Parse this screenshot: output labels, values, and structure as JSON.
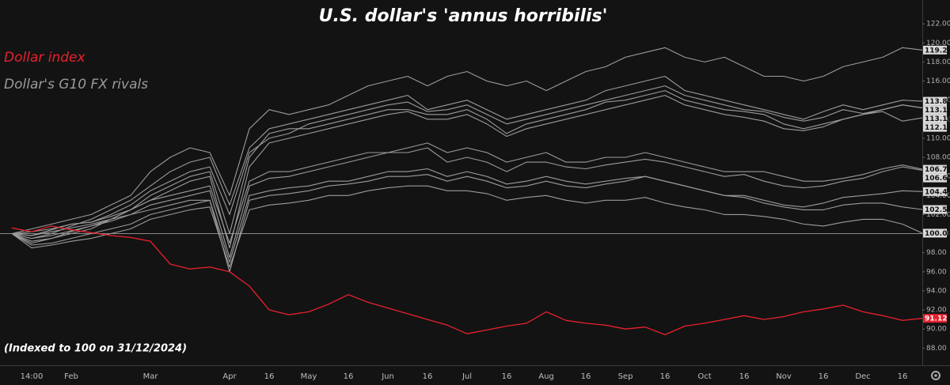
{
  "chart_data": {
    "type": "line",
    "title": "U.S. dollar's 'annus horribilis'",
    "annotation": "(Indexed to 100 on 31/12/2024)",
    "categories": [
      null,
      "14:00",
      null,
      "Feb",
      null,
      null,
      null,
      "Mar",
      null,
      null,
      null,
      "Apr",
      null,
      "16",
      null,
      "May",
      null,
      "16",
      null,
      "Jun",
      null,
      "16",
      null,
      "Jul",
      null,
      "16",
      null,
      "Aug",
      null,
      "16",
      null,
      "Sep",
      null,
      "16",
      null,
      "Oct",
      null,
      "16",
      null,
      "Nov",
      null,
      "16",
      null,
      "Dec",
      null,
      "16",
      null
    ],
    "ylim": [
      86.2,
      124.5
    ],
    "yticks": [
      {
        "value": 88,
        "label": "88.00"
      },
      {
        "value": 90,
        "label": "90.00"
      },
      {
        "value": 92,
        "label": "92.00"
      },
      {
        "value": 94,
        "label": "94.00"
      },
      {
        "value": 96,
        "label": "96.00"
      },
      {
        "value": 98,
        "label": "98.00"
      },
      {
        "value": 100,
        "label": "100.00"
      },
      {
        "value": 102,
        "label": "102.00"
      },
      {
        "value": 104,
        "label": "104.00"
      },
      {
        "value": 106,
        "label": "106.00"
      },
      {
        "value": 108,
        "label": "108.00"
      },
      {
        "value": 110,
        "label": "110.00"
      },
      {
        "value": 112,
        "label": "112.00"
      },
      {
        "value": 114,
        "label": "114.00"
      },
      {
        "value": 116,
        "label": "116.00"
      },
      {
        "value": 118,
        "label": "118.00"
      },
      {
        "value": 120,
        "label": "120.00"
      },
      {
        "value": 122,
        "label": "122.00"
      }
    ],
    "reference_line": 100,
    "grid": false,
    "series": [
      {
        "name": "Dollar index",
        "color": "#e8212e",
        "values": [
          100.6,
          100.2,
          100.8,
          100.4,
          100.1,
          99.8,
          99.6,
          99.2,
          96.8,
          96.3,
          96.5,
          96.0,
          94.5,
          92.0,
          91.5,
          91.8,
          92.6,
          93.6,
          92.8,
          92.2,
          91.6,
          91.0,
          90.4,
          89.5,
          89.9,
          90.3,
          90.6,
          91.8,
          90.9,
          90.6,
          90.4,
          90.0,
          90.2,
          89.4,
          90.3,
          90.6,
          91.0,
          91.4,
          91.0,
          91.3,
          91.8,
          92.1,
          92.5,
          91.8,
          91.4,
          90.9,
          91.12
        ]
      },
      {
        "name": "Dollar's G10 FX rivals",
        "color": "#9b9b9b",
        "lines": [
          [
            100,
            100.5,
            101,
            101.5,
            102,
            103,
            104,
            106.5,
            108,
            109,
            108.5,
            104,
            111,
            113,
            112.5,
            113,
            113.5,
            114.5,
            115.5,
            116,
            116.5,
            115.5,
            116.5,
            117,
            116,
            115.5,
            116,
            115,
            116,
            117,
            117.5,
            118.5,
            119,
            119.5,
            118.5,
            118,
            118.5,
            117.5,
            116.5,
            116.5,
            116,
            116.5,
            117.5,
            118,
            118.5,
            119.5,
            119.25
          ],
          [
            100,
            99.5,
            100,
            100.8,
            101.5,
            102.5,
            103.5,
            105,
            106.5,
            107.5,
            108,
            103,
            109,
            111,
            111.5,
            112,
            112.5,
            113,
            113.5,
            114,
            114.5,
            113,
            113.5,
            114,
            113,
            112,
            112.5,
            113,
            113.5,
            114,
            115,
            115.5,
            116,
            116.5,
            115,
            114.5,
            114,
            113.5,
            113,
            112.5,
            112,
            112.8,
            113.5,
            113,
            113.5,
            114,
            113.88
          ],
          [
            100,
            99.8,
            100.4,
            101,
            101.2,
            102,
            103,
            104.5,
            105.5,
            106.5,
            107,
            102,
            108.5,
            110,
            110.5,
            111.5,
            112,
            112.5,
            113,
            113.5,
            113.8,
            112.8,
            113,
            113.5,
            112.5,
            111.5,
            112,
            112.5,
            113,
            113.5,
            114,
            114.5,
            115,
            115.5,
            114.5,
            114,
            113.5,
            113,
            112.8,
            112.2,
            111.8,
            112.2,
            113,
            112.6,
            113,
            113.5,
            113.19
          ],
          [
            100,
            99.2,
            99.5,
            100,
            100.5,
            101.5,
            102.5,
            104,
            105,
            106,
            106.5,
            100,
            108,
            110.5,
            111,
            111,
            111.5,
            112,
            112.5,
            113,
            113,
            112.5,
            112.5,
            113,
            112,
            110.5,
            111.5,
            112,
            112.5,
            113,
            113.8,
            114,
            114.5,
            115,
            114,
            113.5,
            113,
            112.8,
            112.5,
            111.5,
            111,
            111.5,
            112,
            112.5,
            113,
            113.5,
            113.19
          ],
          [
            100,
            99,
            99.5,
            100.2,
            100.8,
            101.5,
            102.5,
            103.5,
            104.5,
            105.5,
            106,
            98.5,
            107,
            109.5,
            110,
            110.5,
            111,
            111.5,
            112,
            112.5,
            112.8,
            112,
            112,
            112.5,
            111.5,
            110.2,
            111,
            111.5,
            112,
            112.5,
            113,
            113.5,
            114,
            114.5,
            113.5,
            113,
            112.5,
            112.2,
            111.8,
            111,
            110.8,
            111.2,
            112,
            112.5,
            112.8,
            111.8,
            112.14
          ],
          [
            100,
            100.2,
            100.5,
            101,
            101.2,
            101.8,
            102.5,
            103.5,
            104,
            104.5,
            105,
            99,
            105.5,
            106.5,
            106.5,
            107,
            107.5,
            108,
            108.5,
            108.5,
            109,
            109.5,
            108.5,
            109,
            108.5,
            107.5,
            108,
            108.5,
            107.5,
            107.5,
            108,
            108,
            108.5,
            108,
            107.5,
            107,
            106.5,
            106.5,
            106.5,
            106,
            105.5,
            105.5,
            105.8,
            106.2,
            106.8,
            107.2,
            106.75
          ],
          [
            100,
            99.5,
            99.8,
            100.3,
            100.8,
            101.3,
            102,
            103,
            103.5,
            104,
            104.5,
            97.5,
            105,
            105.8,
            106,
            106.5,
            107,
            107.5,
            108,
            108.5,
            108.5,
            109,
            107.5,
            108,
            107.5,
            106.5,
            107.5,
            107.5,
            107,
            106.8,
            107.2,
            107.5,
            107.8,
            107.5,
            107,
            106.5,
            106,
            106.2,
            105.5,
            105,
            104.8,
            105,
            105.5,
            105.8,
            106.5,
            107,
            106.64
          ],
          [
            100,
            99.8,
            100.2,
            100.6,
            101,
            101.5,
            102,
            102.5,
            103,
            103.5,
            103.5,
            97,
            104,
            104.5,
            104.8,
            105,
            105.5,
            105.5,
            106,
            106.5,
            106.5,
            106.8,
            106,
            106.5,
            106,
            105.2,
            105.5,
            106,
            105.5,
            105.2,
            105.5,
            105.8,
            106,
            105.5,
            105,
            104.5,
            104,
            104,
            103.5,
            103,
            102.8,
            103.2,
            103.8,
            104,
            104.2,
            104.5,
            104.41
          ],
          [
            100,
            98.8,
            99,
            99.5,
            100,
            100.5,
            101,
            102,
            102.5,
            103,
            103.5,
            96,
            103.5,
            104,
            104.2,
            104.5,
            105,
            105.2,
            105.5,
            106,
            106,
            106.2,
            105.5,
            106,
            105.5,
            104.8,
            105,
            105.5,
            105,
            104.8,
            105.2,
            105.5,
            106,
            105.5,
            105,
            104.5,
            104,
            103.8,
            103.2,
            102.8,
            102.5,
            102.5,
            103,
            103.2,
            103.2,
            102.8,
            102.53
          ],
          [
            100,
            98.5,
            98.8,
            99.2,
            99.5,
            100,
            100.5,
            101.5,
            102,
            102.5,
            102.8,
            96.5,
            102.5,
            103,
            103.2,
            103.5,
            104,
            104,
            104.5,
            104.8,
            105,
            105,
            104.5,
            104.5,
            104.2,
            103.5,
            103.8,
            104,
            103.5,
            103.2,
            103.5,
            103.5,
            103.8,
            103.2,
            102.8,
            102.5,
            102,
            102,
            101.8,
            101.5,
            101,
            100.8,
            101.2,
            101.5,
            101.5,
            101,
            100.05
          ]
        ]
      }
    ]
  }
}
